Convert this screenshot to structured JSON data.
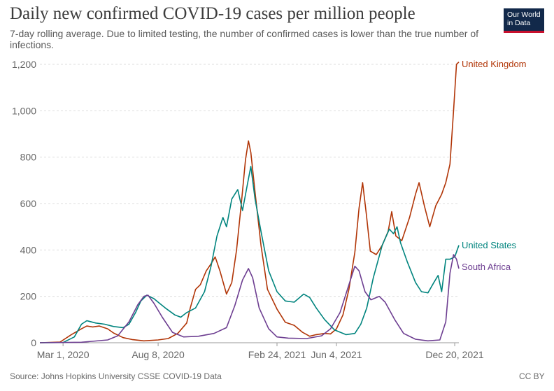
{
  "header": {
    "title": "Daily new confirmed COVID-19 cases per million people",
    "subtitle": "7-day rolling average. Due to limited testing, the number of confirmed cases is lower than the true number of infections.",
    "logo_line1": "Our World",
    "logo_line2": "in Data"
  },
  "footer": {
    "source": "Source: Johns Hopkins University CSSE COVID-19 Data",
    "license": "CC BY"
  },
  "chart_data": {
    "type": "line",
    "x_ticks": [
      "Mar 1, 2020",
      "Aug 8, 2020",
      "Feb 24, 2021",
      "Jun 4, 2021",
      "Dec 20, 2021"
    ],
    "y_ticks": [
      "0",
      "200",
      "400",
      "600",
      "800",
      "1,000",
      "1,200"
    ],
    "ylim": [
      0,
      1200
    ],
    "xlim": [
      "2020-01-22",
      "2021-12-27"
    ],
    "grid": "horizontal",
    "legend": "inline-right",
    "series": [
      {
        "name": "United Kingdom",
        "color": "#b13507",
        "points": [
          [
            "2020-01-22",
            0
          ],
          [
            "2020-02-25",
            3
          ],
          [
            "2020-03-15",
            35
          ],
          [
            "2020-04-01",
            60
          ],
          [
            "2020-04-10",
            72
          ],
          [
            "2020-04-20",
            68
          ],
          [
            "2020-05-01",
            72
          ],
          [
            "2020-05-15",
            60
          ],
          [
            "2020-05-25",
            42
          ],
          [
            "2020-06-10",
            22
          ],
          [
            "2020-06-25",
            14
          ],
          [
            "2020-07-15",
            8
          ],
          [
            "2020-08-08",
            12
          ],
          [
            "2020-08-25",
            18
          ],
          [
            "2020-09-10",
            40
          ],
          [
            "2020-09-25",
            85
          ],
          [
            "2020-10-01",
            150
          ],
          [
            "2020-10-10",
            230
          ],
          [
            "2020-10-18",
            250
          ],
          [
            "2020-10-28",
            310
          ],
          [
            "2020-11-05",
            340
          ],
          [
            "2020-11-12",
            370
          ],
          [
            "2020-11-20",
            310
          ],
          [
            "2020-12-01",
            210
          ],
          [
            "2020-12-10",
            260
          ],
          [
            "2020-12-18",
            400
          ],
          [
            "2020-12-26",
            600
          ],
          [
            "2021-01-02",
            790
          ],
          [
            "2021-01-07",
            870
          ],
          [
            "2021-01-11",
            820
          ],
          [
            "2021-01-18",
            650
          ],
          [
            "2021-01-28",
            420
          ],
          [
            "2021-02-08",
            230
          ],
          [
            "2021-02-24",
            145
          ],
          [
            "2021-03-10",
            88
          ],
          [
            "2021-03-25",
            75
          ],
          [
            "2021-04-08",
            45
          ],
          [
            "2021-04-20",
            28
          ],
          [
            "2021-05-01",
            35
          ],
          [
            "2021-05-15",
            40
          ],
          [
            "2021-05-25",
            38
          ],
          [
            "2021-06-04",
            60
          ],
          [
            "2021-06-15",
            120
          ],
          [
            "2021-06-25",
            230
          ],
          [
            "2021-07-05",
            390
          ],
          [
            "2021-07-12",
            580
          ],
          [
            "2021-07-18",
            690
          ],
          [
            "2021-07-24",
            560
          ],
          [
            "2021-07-31",
            395
          ],
          [
            "2021-08-10",
            380
          ],
          [
            "2021-08-20",
            420
          ],
          [
            "2021-08-30",
            480
          ],
          [
            "2021-09-05",
            565
          ],
          [
            "2021-09-12",
            460
          ],
          [
            "2021-09-22",
            440
          ],
          [
            "2021-10-05",
            540
          ],
          [
            "2021-10-15",
            640
          ],
          [
            "2021-10-21",
            690
          ],
          [
            "2021-10-30",
            590
          ],
          [
            "2021-11-08",
            500
          ],
          [
            "2021-11-18",
            590
          ],
          [
            "2021-11-28",
            640
          ],
          [
            "2021-12-05",
            690
          ],
          [
            "2021-12-12",
            770
          ],
          [
            "2021-12-18",
            1000
          ],
          [
            "2021-12-23",
            1200
          ],
          [
            "2021-12-27",
            1210
          ]
        ]
      },
      {
        "name": "United States",
        "color": "#00847e",
        "points": [
          [
            "2020-01-22",
            0
          ],
          [
            "2020-03-01",
            1
          ],
          [
            "2020-03-20",
            25
          ],
          [
            "2020-04-01",
            80
          ],
          [
            "2020-04-10",
            95
          ],
          [
            "2020-04-25",
            85
          ],
          [
            "2020-05-10",
            80
          ],
          [
            "2020-05-25",
            70
          ],
          [
            "2020-06-10",
            65
          ],
          [
            "2020-06-20",
            80
          ],
          [
            "2020-07-01",
            130
          ],
          [
            "2020-07-10",
            180
          ],
          [
            "2020-07-20",
            205
          ],
          [
            "2020-08-01",
            190
          ],
          [
            "2020-08-08",
            175
          ],
          [
            "2020-08-20",
            150
          ],
          [
            "2020-09-05",
            120
          ],
          [
            "2020-09-15",
            110
          ],
          [
            "2020-09-25",
            130
          ],
          [
            "2020-10-10",
            150
          ],
          [
            "2020-10-25",
            220
          ],
          [
            "2020-11-05",
            330
          ],
          [
            "2020-11-15",
            460
          ],
          [
            "2020-11-25",
            540
          ],
          [
            "2020-12-01",
            500
          ],
          [
            "2020-12-10",
            620
          ],
          [
            "2020-12-20",
            660
          ],
          [
            "2020-12-28",
            570
          ],
          [
            "2021-01-05",
            680
          ],
          [
            "2021-01-11",
            760
          ],
          [
            "2021-01-18",
            620
          ],
          [
            "2021-01-28",
            480
          ],
          [
            "2021-02-10",
            310
          ],
          [
            "2021-02-24",
            220
          ],
          [
            "2021-03-10",
            180
          ],
          [
            "2021-03-25",
            175
          ],
          [
            "2021-04-10",
            210
          ],
          [
            "2021-04-20",
            195
          ],
          [
            "2021-05-01",
            150
          ],
          [
            "2021-05-15",
            100
          ],
          [
            "2021-06-01",
            55
          ],
          [
            "2021-06-20",
            35
          ],
          [
            "2021-07-05",
            40
          ],
          [
            "2021-07-15",
            80
          ],
          [
            "2021-07-25",
            150
          ],
          [
            "2021-08-05",
            280
          ],
          [
            "2021-08-20",
            420
          ],
          [
            "2021-09-01",
            490
          ],
          [
            "2021-09-08",
            470
          ],
          [
            "2021-09-14",
            500
          ],
          [
            "2021-09-20",
            430
          ],
          [
            "2021-10-01",
            350
          ],
          [
            "2021-10-15",
            260
          ],
          [
            "2021-10-25",
            220
          ],
          [
            "2021-11-05",
            215
          ],
          [
            "2021-11-15",
            260
          ],
          [
            "2021-11-22",
            290
          ],
          [
            "2021-11-28",
            220
          ],
          [
            "2021-12-05",
            360
          ],
          [
            "2021-12-12",
            360
          ],
          [
            "2021-12-20",
            370
          ],
          [
            "2021-12-27",
            420
          ]
        ]
      },
      {
        "name": "South Africa",
        "color": "#6d3e91",
        "points": [
          [
            "2020-01-22",
            0
          ],
          [
            "2020-04-01",
            2
          ],
          [
            "2020-05-15",
            12
          ],
          [
            "2020-06-01",
            30
          ],
          [
            "2020-06-20",
            90
          ],
          [
            "2020-07-05",
            165
          ],
          [
            "2020-07-15",
            200
          ],
          [
            "2020-07-22",
            205
          ],
          [
            "2020-08-01",
            170
          ],
          [
            "2020-08-15",
            110
          ],
          [
            "2020-09-01",
            45
          ],
          [
            "2020-09-20",
            25
          ],
          [
            "2020-10-15",
            28
          ],
          [
            "2020-11-10",
            40
          ],
          [
            "2020-12-01",
            65
          ],
          [
            "2020-12-15",
            160
          ],
          [
            "2020-12-28",
            270
          ],
          [
            "2021-01-07",
            320
          ],
          [
            "2021-01-14",
            280
          ],
          [
            "2021-01-25",
            150
          ],
          [
            "2021-02-10",
            60
          ],
          [
            "2021-02-24",
            25
          ],
          [
            "2021-03-15",
            20
          ],
          [
            "2021-04-15",
            18
          ],
          [
            "2021-05-10",
            30
          ],
          [
            "2021-05-25",
            60
          ],
          [
            "2021-06-10",
            130
          ],
          [
            "2021-06-25",
            250
          ],
          [
            "2021-07-05",
            330
          ],
          [
            "2021-07-12",
            310
          ],
          [
            "2021-07-22",
            220
          ],
          [
            "2021-08-01",
            185
          ],
          [
            "2021-08-15",
            200
          ],
          [
            "2021-08-25",
            175
          ],
          [
            "2021-09-10",
            100
          ],
          [
            "2021-09-25",
            40
          ],
          [
            "2021-10-15",
            15
          ],
          [
            "2021-11-05",
            8
          ],
          [
            "2021-11-25",
            12
          ],
          [
            "2021-12-05",
            90
          ],
          [
            "2021-12-12",
            300
          ],
          [
            "2021-12-18",
            380
          ],
          [
            "2021-12-23",
            360
          ],
          [
            "2021-12-27",
            320
          ]
        ]
      }
    ]
  }
}
